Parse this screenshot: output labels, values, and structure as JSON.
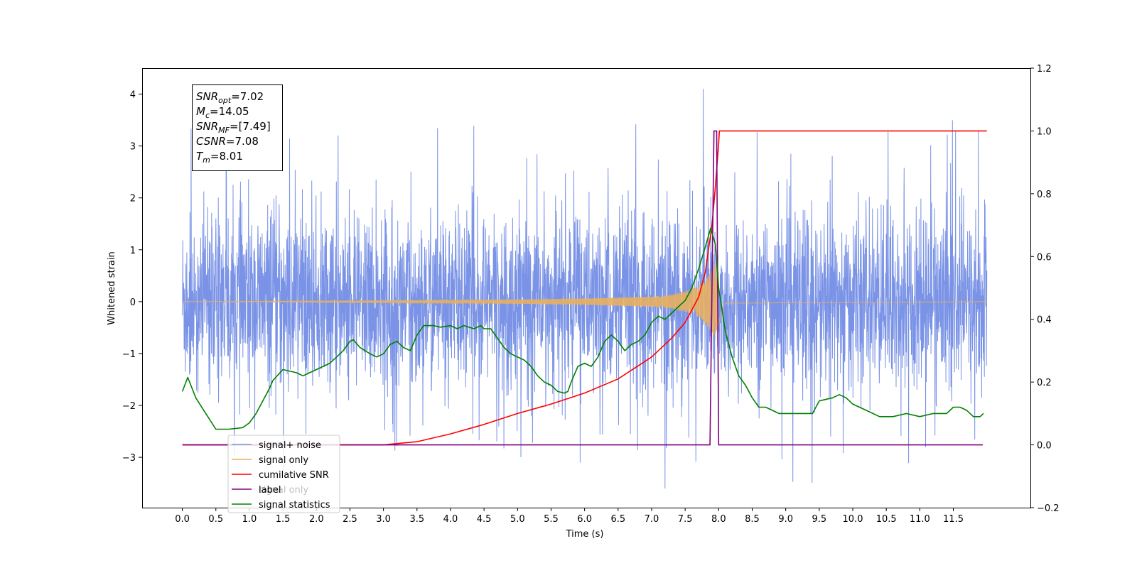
{
  "chart_data": {
    "type": "line",
    "title": "",
    "xlabel": "Time (s)",
    "ylabel": "Whitened strain",
    "ylabel_right": "",
    "xlim": [
      -0.6,
      12.65
    ],
    "ylim": [
      -3.97,
      4.5
    ],
    "ylim_right": [
      -0.2,
      1.2
    ],
    "x_ticks": [
      "0.0",
      "0.5",
      "1.0",
      "1.5",
      "2.0",
      "2.5",
      "3.0",
      "3.5",
      "4.0",
      "4.5",
      "5.0",
      "5.5",
      "6.0",
      "6.5",
      "7.0",
      "7.5",
      "8.0",
      "8.5",
      "9.0",
      "9.5",
      "10.0",
      "10.5",
      "11.0",
      "11.5"
    ],
    "y_ticks": [
      "4",
      "3",
      "2",
      "1",
      "0",
      "−1",
      "−2",
      "−3"
    ],
    "y_ticks_right": [
      "1.2",
      "1.0",
      "0.8",
      "0.6",
      "0.4",
      "0.2",
      "0.0",
      "−0.2"
    ],
    "grid": false,
    "legend_position": "bottom-left",
    "annotation": {
      "lines": [
        {
          "var": "SNR",
          "sub": "opt",
          "rest": "=7.02"
        },
        {
          "var": "M",
          "sub": "c",
          "rest": "=14.05"
        },
        {
          "var": "SNR",
          "sub": "MF",
          "rest": "=[7.49]"
        },
        {
          "var": "CSNR",
          "sub": "",
          "rest": "=7.08"
        },
        {
          "var": "T",
          "sub": "m",
          "rest": "=8.01"
        }
      ]
    },
    "series": [
      {
        "name": "signal+ noise",
        "color": "#7a93e6",
        "axis": "left",
        "description": "whitened noise plus signal, approx. +/-1.3 sigma band with spikes to about +/-3.5",
        "duration_s": 12.0,
        "envelope_typical": [
          -1.5,
          1.5
        ],
        "max_value": 4.1,
        "max_at_s": 7.77,
        "min_value": -3.6,
        "min_at_s": 7.2
      },
      {
        "name": "signal only",
        "color": "#e8b060",
        "axis": "left",
        "description": "chirp waveform growing in amplitude toward merger",
        "x": [
          0.0,
          3.0,
          5.0,
          6.0,
          6.5,
          7.0,
          7.3,
          7.5,
          7.7,
          7.8,
          7.9,
          7.95,
          8.0,
          8.05,
          8.1,
          12.0
        ],
        "amplitude": [
          0.0,
          0.02,
          0.04,
          0.06,
          0.08,
          0.1,
          0.14,
          0.2,
          0.3,
          0.42,
          0.6,
          0.75,
          0.45,
          0.12,
          0.03,
          0.0
        ]
      },
      {
        "name": "cumilative SNR",
        "color": "#ff0000",
        "axis": "right",
        "x": [
          0.0,
          3.0,
          3.5,
          4.0,
          4.5,
          5.0,
          5.5,
          6.0,
          6.5,
          7.0,
          7.3,
          7.5,
          7.7,
          7.8,
          7.9,
          7.95,
          8.0,
          8.01,
          12.0
        ],
        "y": [
          0.0,
          0.0,
          0.01,
          0.035,
          0.065,
          0.1,
          0.13,
          0.165,
          0.21,
          0.28,
          0.34,
          0.39,
          0.47,
          0.55,
          0.7,
          0.82,
          0.96,
          1.0,
          1.0
        ]
      },
      {
        "name": "label",
        "color": "#800080",
        "axis": "right",
        "x": [
          0.0,
          7.87,
          7.93,
          7.97,
          8.0,
          8.06,
          11.94
        ],
        "y": [
          0.0,
          0.0,
          1.0,
          1.0,
          0.0,
          0.0,
          0.0
        ]
      },
      {
        "name": "signal only",
        "color": "#800080",
        "axis": "right",
        "x": [],
        "y": []
      },
      {
        "name": "signal statistics",
        "color": "#008000",
        "axis": "right",
        "x": [
          0.0,
          0.08,
          0.2,
          0.35,
          0.5,
          0.7,
          0.9,
          1.0,
          1.1,
          1.2,
          1.3,
          1.35,
          1.5,
          1.7,
          1.8,
          1.9,
          2.0,
          2.2,
          2.3,
          2.4,
          2.5,
          2.55,
          2.65,
          2.8,
          2.9,
          3.0,
          3.1,
          3.2,
          3.3,
          3.4,
          3.5,
          3.6,
          3.75,
          3.85,
          4.0,
          4.1,
          4.2,
          4.35,
          4.45,
          4.5,
          4.6,
          4.7,
          4.8,
          4.9,
          5.0,
          5.1,
          5.2,
          5.3,
          5.4,
          5.5,
          5.6,
          5.7,
          5.75,
          5.8,
          5.9,
          6.0,
          6.1,
          6.2,
          6.3,
          6.4,
          6.5,
          6.6,
          6.7,
          6.8,
          6.9,
          7.0,
          7.1,
          7.2,
          7.3,
          7.4,
          7.5,
          7.6,
          7.7,
          7.8,
          7.88,
          7.95,
          8.0,
          8.1,
          8.2,
          8.3,
          8.4,
          8.5,
          8.6,
          8.7,
          8.8,
          8.9,
          9.0,
          9.2,
          9.4,
          9.5,
          9.7,
          9.8,
          9.9,
          10.0,
          10.1,
          10.2,
          10.4,
          10.6,
          10.8,
          11.0,
          11.2,
          11.4,
          11.5,
          11.6,
          11.7,
          11.8,
          11.9,
          11.95
        ],
        "y": [
          0.17,
          0.215,
          0.15,
          0.1,
          0.05,
          0.05,
          0.055,
          0.07,
          0.1,
          0.14,
          0.18,
          0.205,
          0.24,
          0.23,
          0.22,
          0.23,
          0.24,
          0.26,
          0.28,
          0.3,
          0.33,
          0.335,
          0.31,
          0.29,
          0.28,
          0.29,
          0.32,
          0.33,
          0.31,
          0.3,
          0.35,
          0.38,
          0.38,
          0.375,
          0.38,
          0.37,
          0.38,
          0.37,
          0.38,
          0.37,
          0.37,
          0.34,
          0.31,
          0.29,
          0.28,
          0.27,
          0.25,
          0.22,
          0.2,
          0.19,
          0.17,
          0.165,
          0.17,
          0.2,
          0.25,
          0.26,
          0.25,
          0.28,
          0.33,
          0.35,
          0.33,
          0.3,
          0.32,
          0.33,
          0.35,
          0.39,
          0.41,
          0.4,
          0.42,
          0.44,
          0.46,
          0.5,
          0.56,
          0.63,
          0.69,
          0.64,
          0.5,
          0.36,
          0.28,
          0.22,
          0.19,
          0.15,
          0.12,
          0.12,
          0.11,
          0.1,
          0.1,
          0.1,
          0.1,
          0.14,
          0.15,
          0.16,
          0.15,
          0.13,
          0.12,
          0.11,
          0.09,
          0.09,
          0.1,
          0.09,
          0.1,
          0.1,
          0.12,
          0.12,
          0.11,
          0.09,
          0.09,
          0.1
        ]
      }
    ]
  }
}
